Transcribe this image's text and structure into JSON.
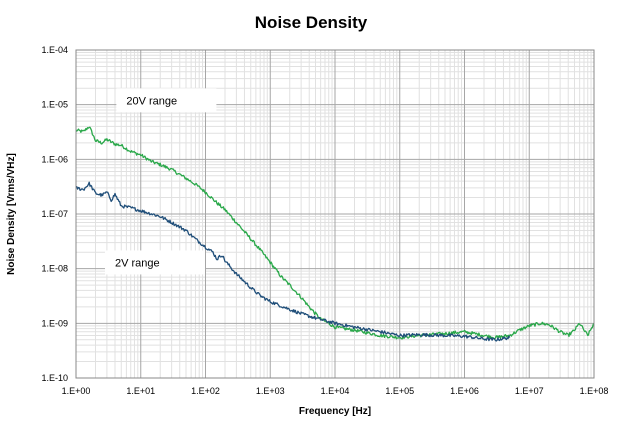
{
  "chart_data": {
    "type": "line",
    "title": "Noise Density",
    "xlabel": "Frequency [Hz]",
    "ylabel": "Noise Density [Vrms/VHz]",
    "x_scale": "log",
    "y_scale": "log",
    "xlim": [
      1,
      100000000
    ],
    "ylim": [
      1e-10,
      0.0001
    ],
    "grid": true,
    "x_ticks": [
      {
        "value": 1,
        "label": "1.E+00"
      },
      {
        "value": 10,
        "label": "1.E+01"
      },
      {
        "value": 100,
        "label": "1.E+02"
      },
      {
        "value": 1000,
        "label": "1.E+03"
      },
      {
        "value": 10000,
        "label": "1.E+04"
      },
      {
        "value": 100000,
        "label": "1.E+05"
      },
      {
        "value": 1000000,
        "label": "1.E+06"
      },
      {
        "value": 10000000,
        "label": "1.E+07"
      },
      {
        "value": 100000000,
        "label": "1.E+08"
      }
    ],
    "y_ticks": [
      {
        "value": 1e-10,
        "label": "1.E-10"
      },
      {
        "value": 1e-09,
        "label": "1.E-09"
      },
      {
        "value": 1e-08,
        "label": "1.E-08"
      },
      {
        "value": 1e-07,
        "label": "1.E-07"
      },
      {
        "value": 1e-06,
        "label": "1.E-06"
      },
      {
        "value": 1e-05,
        "label": "1.E-05"
      },
      {
        "value": 0.0001,
        "label": "1.E-04"
      }
    ],
    "annotations": [
      {
        "text": "20V range",
        "x": 6,
        "y": 1.2e-05
      },
      {
        "text": "2V range",
        "x": 4,
        "y": 1.3e-08
      }
    ],
    "series": [
      {
        "color": "#2aa84a",
        "points": [
          [
            1,
            3.4e-06
          ],
          [
            1.3,
            3.2e-06
          ],
          [
            1.6,
            4e-06
          ],
          [
            2,
            2.2e-06
          ],
          [
            2.5,
            2e-06
          ],
          [
            3,
            2.3e-06
          ],
          [
            4,
            1.9e-06
          ],
          [
            5,
            1.8e-06
          ],
          [
            7,
            1.4e-06
          ],
          [
            10,
            1.2e-06
          ],
          [
            15,
            9e-07
          ],
          [
            20,
            8e-07
          ],
          [
            30,
            6.5e-07
          ],
          [
            50,
            4.5e-07
          ],
          [
            70,
            3.5e-07
          ],
          [
            100,
            2.5e-07
          ],
          [
            150,
            1.6e-07
          ],
          [
            200,
            1.2e-07
          ],
          [
            300,
            7e-08
          ],
          [
            500,
            3.5e-08
          ],
          [
            700,
            2.2e-08
          ],
          [
            1000,
            1.3e-08
          ],
          [
            1500,
            7e-09
          ],
          [
            2000,
            5e-09
          ],
          [
            3000,
            3e-09
          ],
          [
            4000,
            2e-09
          ],
          [
            5000,
            1.5e-09
          ],
          [
            6000,
            1.2e-09
          ],
          [
            8000,
            1e-09
          ],
          [
            10000,
            8.5e-10
          ],
          [
            20000,
            7.5e-10
          ],
          [
            50000,
            6e-10
          ],
          [
            100000,
            5.5e-10
          ],
          [
            200000,
            6e-10
          ],
          [
            300000,
            6.2e-10
          ],
          [
            500000,
            6.5e-10
          ],
          [
            1000000,
            7e-10
          ],
          [
            2000000,
            6e-10
          ],
          [
            3000000,
            5.5e-10
          ],
          [
            5000000,
            6e-10
          ],
          [
            7000000,
            7.5e-10
          ],
          [
            10000000,
            9e-10
          ],
          [
            15000000,
            1e-09
          ],
          [
            20000000,
            9.5e-10
          ],
          [
            30000000,
            7e-10
          ],
          [
            40000000,
            6e-10
          ],
          [
            50000000,
            7.5e-10
          ],
          [
            60000000,
            1e-09
          ],
          [
            70000000,
            7.5e-10
          ],
          [
            80000000,
            6e-10
          ],
          [
            100000000,
            1e-09
          ]
        ]
      },
      {
        "color": "#1f4e79",
        "points": [
          [
            1,
            3e-07
          ],
          [
            1.3,
            2.8e-07
          ],
          [
            1.6,
            3.6e-07
          ],
          [
            2,
            2.4e-07
          ],
          [
            2.5,
            2.2e-07
          ],
          [
            3,
            2.5e-07
          ],
          [
            3.5,
            1.8e-07
          ],
          [
            4,
            2.3e-07
          ],
          [
            5,
            1.4e-07
          ],
          [
            7,
            1.3e-07
          ],
          [
            10,
            1.15e-07
          ],
          [
            15,
            1e-07
          ],
          [
            20,
            9e-08
          ],
          [
            30,
            7e-08
          ],
          [
            50,
            5e-08
          ],
          [
            70,
            3.5e-08
          ],
          [
            100,
            2.5e-08
          ],
          [
            130,
            2e-08
          ],
          [
            150,
            1.5e-08
          ],
          [
            180,
            1.8e-08
          ],
          [
            200,
            1.4e-08
          ],
          [
            300,
            8e-09
          ],
          [
            500,
            4.5e-09
          ],
          [
            700,
            3.2e-09
          ],
          [
            1000,
            2.5e-09
          ],
          [
            2000,
            1.8e-09
          ],
          [
            3000,
            1.5e-09
          ],
          [
            5000,
            1.25e-09
          ],
          [
            10000,
            1e-09
          ],
          [
            20000,
            8.5e-10
          ],
          [
            50000,
            7e-10
          ],
          [
            100000,
            6e-10
          ],
          [
            200000,
            6.2e-10
          ],
          [
            500000,
            6e-10
          ],
          [
            1000000,
            5.8e-10
          ],
          [
            2000000,
            5.2e-10
          ],
          [
            3000000,
            5e-10
          ],
          [
            5000000,
            5.5e-10
          ]
        ]
      }
    ]
  }
}
